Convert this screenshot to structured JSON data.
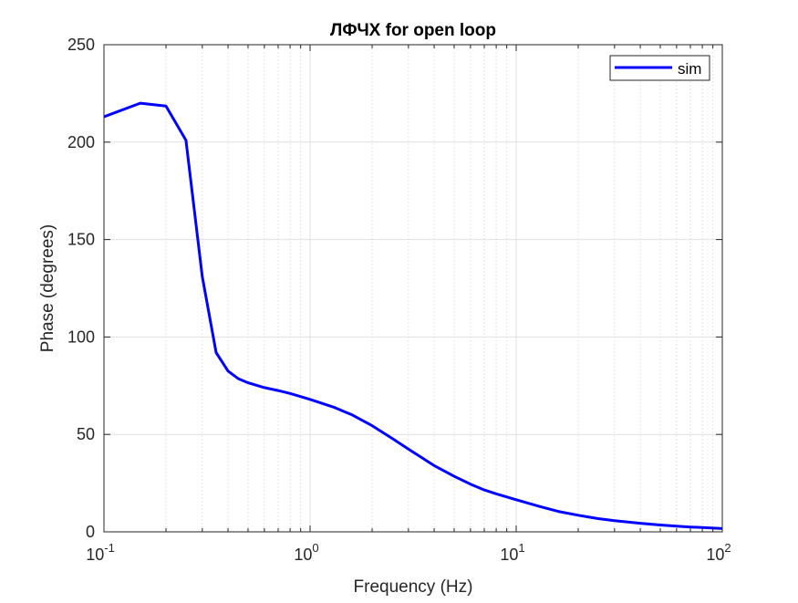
{
  "chart_data": {
    "type": "line",
    "title": "ЛФЧХ for open loop",
    "xlabel": "Frequency (Hz)",
    "ylabel": "Phase (degrees)",
    "xscale": "log",
    "xlim": [
      0.1,
      100
    ],
    "ylim": [
      0,
      250
    ],
    "grid": true,
    "legend_position": "top-right",
    "x_ticks": [
      {
        "base": "10",
        "exp": "-1",
        "value": 0.1
      },
      {
        "base": "10",
        "exp": "0",
        "value": 1
      },
      {
        "base": "10",
        "exp": "1",
        "value": 10
      },
      {
        "base": "10",
        "exp": "2",
        "value": 100
      }
    ],
    "y_ticks": [
      "0",
      "50",
      "100",
      "150",
      "200",
      "250"
    ],
    "series": [
      {
        "name": "sim",
        "color": "#0000ff",
        "x": [
          0.1,
          0.15,
          0.2,
          0.25,
          0.3,
          0.35,
          0.4,
          0.45,
          0.5,
          0.6,
          0.7,
          0.8,
          1.0,
          1.3,
          1.6,
          2.0,
          2.5,
          3.0,
          4.0,
          5.0,
          6.0,
          7.0,
          8.0,
          10,
          13,
          16,
          20,
          25,
          30,
          40,
          50,
          60,
          70,
          80,
          100
        ],
        "y": [
          213,
          220,
          218.5,
          201,
          131,
          92,
          82.5,
          78.5,
          76.5,
          74,
          72.5,
          71,
          68,
          64,
          60,
          54.5,
          48,
          42.5,
          34,
          28.5,
          24.5,
          21.5,
          19.5,
          16.5,
          13,
          10.5,
          8.5,
          6.8,
          5.7,
          4.4,
          3.5,
          2.9,
          2.5,
          2.2,
          1.7
        ]
      }
    ]
  }
}
